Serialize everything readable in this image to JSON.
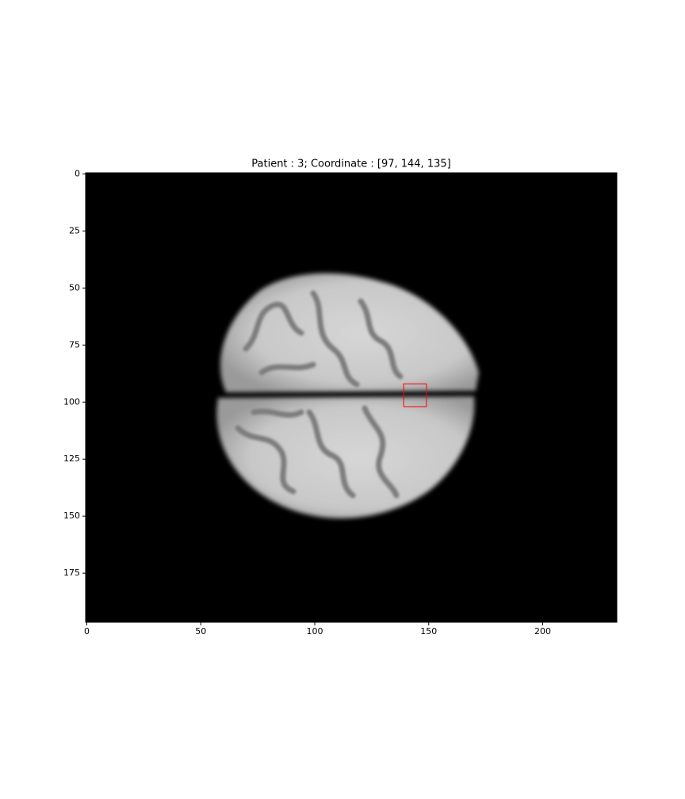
{
  "chart_data": {
    "type": "image",
    "title": "Patient : 3; Coordinate : [97, 144, 135]",
    "xlim": [
      -0.5,
      232.5
    ],
    "ylim": [
      196.5,
      -0.5
    ],
    "xticks": [
      0,
      50,
      100,
      150,
      200
    ],
    "yticks": [
      0,
      25,
      50,
      75,
      100,
      125,
      150,
      175
    ],
    "box": {
      "x": 139,
      "y": 92,
      "width": 10,
      "height": 10,
      "color": "red"
    }
  }
}
